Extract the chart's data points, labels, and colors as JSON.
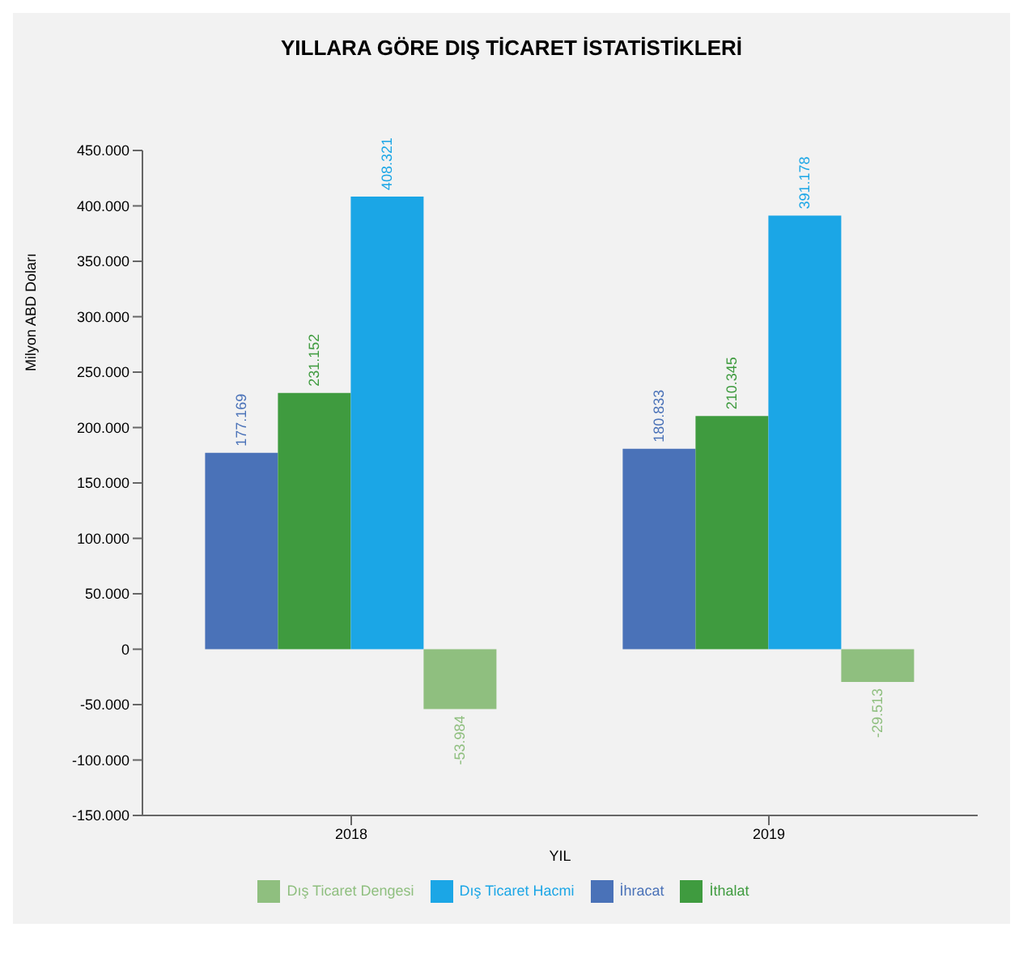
{
  "chart_data": {
    "type": "bar",
    "title": "YILLARA GÖRE DIŞ TİCARET  İSTATİSTİKLERİ",
    "ylabel": "Milyon ABD Doları",
    "xlabel": "YIL",
    "categories": [
      "2018",
      "2019"
    ],
    "series": [
      {
        "name": "İhracat",
        "color": "#4a72b8",
        "values": [
          177169,
          180833
        ],
        "value_labels": [
          "177.169",
          "180.833"
        ]
      },
      {
        "name": "İthalat",
        "color": "#3f9b3f",
        "values": [
          231152,
          210345
        ],
        "value_labels": [
          "231.152",
          "210.345"
        ]
      },
      {
        "name": "Dış Ticaret Hacmi",
        "color": "#1ba6e6",
        "values": [
          408321,
          391178
        ],
        "value_labels": [
          "408.321",
          "391.178"
        ]
      },
      {
        "name": "Dış Ticaret Dengesi",
        "color": "#8fbf7f",
        "values": [
          -53984,
          -29513
        ],
        "value_labels": [
          "-53.984",
          "-29.513"
        ]
      }
    ],
    "ylim": [
      -150000,
      450000
    ],
    "yticks": [
      {
        "value": -150000,
        "label": "-150.000"
      },
      {
        "value": -100000,
        "label": "-100.000"
      },
      {
        "value": -50000,
        "label": "-50.000"
      },
      {
        "value": 0,
        "label": "0"
      },
      {
        "value": 50000,
        "label": "50.000"
      },
      {
        "value": 100000,
        "label": "100.000"
      },
      {
        "value": 150000,
        "label": "150.000"
      },
      {
        "value": 200000,
        "label": "200.000"
      },
      {
        "value": 250000,
        "label": "250.000"
      },
      {
        "value": 300000,
        "label": "300.000"
      },
      {
        "value": 350000,
        "label": "350.000"
      },
      {
        "value": 400000,
        "label": "400.000"
      },
      {
        "value": 450000,
        "label": "450.000"
      }
    ],
    "grid": false,
    "legend": "bottom"
  }
}
